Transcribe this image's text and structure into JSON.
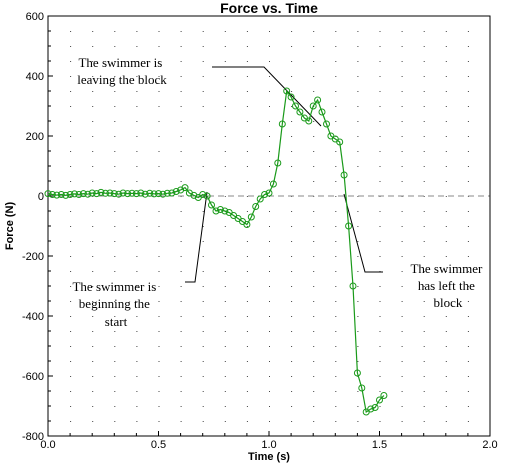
{
  "chart_data": {
    "type": "line",
    "title": "Force vs. Time",
    "xlabel": "Time (s)",
    "ylabel": "Force (N)",
    "xlim": [
      0.0,
      2.0
    ],
    "ylim": [
      -800,
      600
    ],
    "x_ticks": [
      "0.0",
      "0.5",
      "1.0",
      "1.5",
      "2.0"
    ],
    "y_ticks": [
      "600",
      "400",
      "200",
      "0",
      "-200",
      "-400",
      "-600",
      "-800"
    ],
    "grid": "dotted",
    "series_color": "#1a9a1a",
    "zero_line": true,
    "series": [
      {
        "x": [
          0.0,
          0.02,
          0.04,
          0.06,
          0.08,
          0.1,
          0.12,
          0.14,
          0.16,
          0.18,
          0.2,
          0.22,
          0.24,
          0.26,
          0.28,
          0.3,
          0.32,
          0.34,
          0.36,
          0.38,
          0.4,
          0.42,
          0.44,
          0.46,
          0.48,
          0.5,
          0.52,
          0.54,
          0.56,
          0.58,
          0.6,
          0.62,
          0.64,
          0.66,
          0.68,
          0.7,
          0.72,
          0.74,
          0.76,
          0.78,
          0.8,
          0.82,
          0.84,
          0.86,
          0.88,
          0.9,
          0.92,
          0.94,
          0.96,
          0.98,
          1.0,
          1.02,
          1.04,
          1.06,
          1.08,
          1.1,
          1.12,
          1.14,
          1.16,
          1.18,
          1.2,
          1.22,
          1.24,
          1.26,
          1.28,
          1.3,
          1.32,
          1.34,
          1.36,
          1.38,
          1.4,
          1.42,
          1.44,
          1.46,
          1.48,
          1.5,
          1.52
        ],
        "y": [
          8,
          5,
          3,
          5,
          2,
          5,
          7,
          5,
          8,
          6,
          10,
          8,
          12,
          9,
          10,
          8,
          6,
          10,
          8,
          9,
          8,
          10,
          6,
          9,
          7,
          8,
          6,
          9,
          10,
          15,
          20,
          28,
          10,
          2,
          -5,
          5,
          0,
          -30,
          -50,
          -45,
          -50,
          -55,
          -65,
          -75,
          -85,
          -95,
          -70,
          -35,
          -10,
          5,
          10,
          40,
          110,
          240,
          350,
          330,
          300,
          280,
          260,
          250,
          300,
          320,
          280,
          240,
          200,
          190,
          180,
          70,
          -100,
          -300,
          -590,
          -640,
          -720,
          -710,
          -705,
          -680,
          -665
        ]
      }
    ],
    "annotations": [
      {
        "lines": [
          "The swimmer is",
          "leaving the block"
        ]
      },
      {
        "lines": [
          "The swimmer is",
          "beginning the",
          "start"
        ]
      },
      {
        "lines": [
          "The swimmer",
          "has left the",
          "block"
        ]
      }
    ]
  }
}
